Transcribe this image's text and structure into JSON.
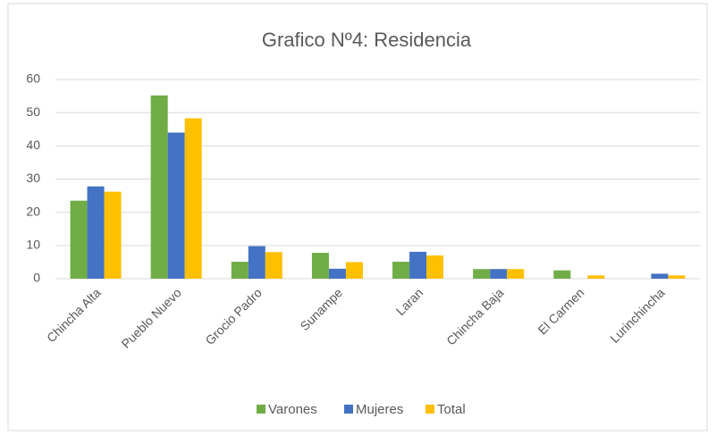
{
  "chart_data": {
    "type": "bar",
    "title": "Grafico Nº4: Residencia",
    "categories": [
      "Chincha Alta",
      "Pueblo Nuevo",
      "Grocio Padro",
      "Sunampe",
      "Laran",
      "Chincha Baja",
      "El Carmen",
      "Lurinchincha"
    ],
    "series": [
      {
        "name": "Varones",
        "color": "#70ad47",
        "values": [
          23.5,
          55.2,
          5.1,
          7.8,
          5.1,
          2.9,
          2.5,
          0
        ]
      },
      {
        "name": "Mujeres",
        "color": "#4472c4",
        "values": [
          27.8,
          44,
          9.8,
          3,
          8.1,
          2.9,
          0,
          1.5
        ]
      },
      {
        "name": "Total",
        "color": "#ffc000",
        "values": [
          26.2,
          48.3,
          8,
          5,
          7,
          2.9,
          1,
          1
        ]
      }
    ],
    "ylim": [
      0,
      60
    ],
    "yticks": [
      0,
      10,
      20,
      30,
      40,
      50,
      60
    ],
    "grid": true,
    "legend": "bottom"
  }
}
